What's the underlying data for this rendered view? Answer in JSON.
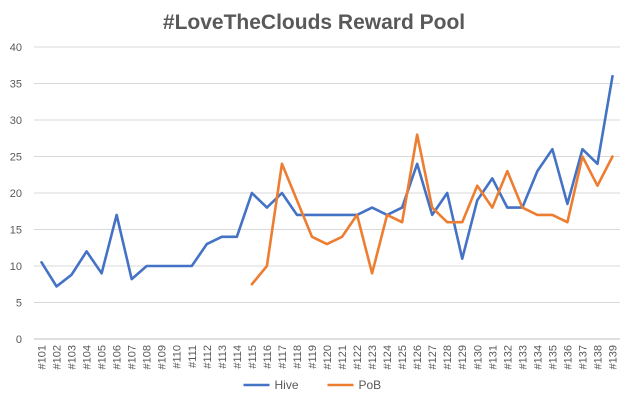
{
  "chart_data": {
    "type": "line",
    "title": "#LoveTheClouds Reward Pool",
    "xlabel": "",
    "ylabel": "",
    "ylim": [
      0,
      40
    ],
    "yticks": [
      0,
      5,
      10,
      15,
      20,
      25,
      30,
      35,
      40
    ],
    "grid": true,
    "legend_position": "bottom",
    "categories": [
      "#101",
      "#102",
      "#103",
      "#104",
      "#105",
      "#106",
      "#107",
      "#108",
      "#109",
      "#110",
      "#111",
      "#112",
      "#113",
      "#114",
      "#115",
      "#116",
      "#117",
      "#118",
      "#119",
      "#120",
      "#121",
      "#122",
      "#123",
      "#124",
      "#125",
      "#126",
      "#127",
      "#128",
      "#129",
      "#130",
      "#131",
      "#132",
      "#133",
      "#134",
      "#135",
      "#136",
      "#137",
      "#138",
      "#139"
    ],
    "series": [
      {
        "name": "Hive",
        "color": "#4472C4",
        "values": [
          10.5,
          7.2,
          8.8,
          12,
          9,
          17,
          8.2,
          10,
          10,
          10,
          10,
          13,
          14,
          14,
          20,
          18,
          20,
          17,
          17,
          17,
          17,
          17,
          18,
          17,
          18,
          24,
          17,
          20,
          11,
          19,
          22,
          18,
          18,
          23,
          26,
          18.5,
          26,
          24,
          36
        ]
      },
      {
        "name": "PoB",
        "color": "#ED7D31",
        "values": [
          null,
          null,
          null,
          null,
          null,
          null,
          null,
          null,
          null,
          null,
          null,
          null,
          null,
          null,
          7.5,
          10,
          24,
          19,
          14,
          13,
          14,
          17,
          9,
          17,
          16,
          28,
          18,
          16,
          16,
          21,
          18,
          23,
          18,
          17,
          17,
          16,
          25,
          21,
          25
        ]
      }
    ]
  }
}
